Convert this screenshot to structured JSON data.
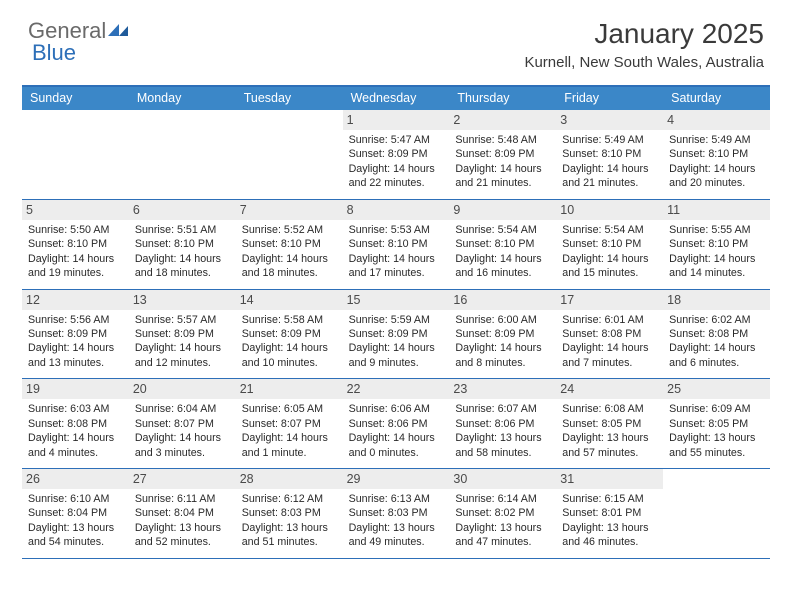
{
  "logo": {
    "text1": "General",
    "text2": "Blue",
    "color1": "#6a6a6a",
    "color2": "#2d6fb8"
  },
  "title": "January 2025",
  "location": "Kurnell, New South Wales, Australia",
  "colors": {
    "header_bar": "#3b87c8",
    "rule": "#2d6fb8",
    "daynum_bg": "#ededed",
    "text": "#333333",
    "background": "#ffffff"
  },
  "weekdays": [
    "Sunday",
    "Monday",
    "Tuesday",
    "Wednesday",
    "Thursday",
    "Friday",
    "Saturday"
  ],
  "weeks": [
    [
      {
        "blank": true
      },
      {
        "blank": true
      },
      {
        "blank": true
      },
      {
        "num": "1",
        "sunrise": "5:47 AM",
        "sunset": "8:09 PM",
        "daylight": "14 hours and 22 minutes."
      },
      {
        "num": "2",
        "sunrise": "5:48 AM",
        "sunset": "8:09 PM",
        "daylight": "14 hours and 21 minutes."
      },
      {
        "num": "3",
        "sunrise": "5:49 AM",
        "sunset": "8:10 PM",
        "daylight": "14 hours and 21 minutes."
      },
      {
        "num": "4",
        "sunrise": "5:49 AM",
        "sunset": "8:10 PM",
        "daylight": "14 hours and 20 minutes."
      }
    ],
    [
      {
        "num": "5",
        "sunrise": "5:50 AM",
        "sunset": "8:10 PM",
        "daylight": "14 hours and 19 minutes."
      },
      {
        "num": "6",
        "sunrise": "5:51 AM",
        "sunset": "8:10 PM",
        "daylight": "14 hours and 18 minutes."
      },
      {
        "num": "7",
        "sunrise": "5:52 AM",
        "sunset": "8:10 PM",
        "daylight": "14 hours and 18 minutes."
      },
      {
        "num": "8",
        "sunrise": "5:53 AM",
        "sunset": "8:10 PM",
        "daylight": "14 hours and 17 minutes."
      },
      {
        "num": "9",
        "sunrise": "5:54 AM",
        "sunset": "8:10 PM",
        "daylight": "14 hours and 16 minutes."
      },
      {
        "num": "10",
        "sunrise": "5:54 AM",
        "sunset": "8:10 PM",
        "daylight": "14 hours and 15 minutes."
      },
      {
        "num": "11",
        "sunrise": "5:55 AM",
        "sunset": "8:10 PM",
        "daylight": "14 hours and 14 minutes."
      }
    ],
    [
      {
        "num": "12",
        "sunrise": "5:56 AM",
        "sunset": "8:09 PM",
        "daylight": "14 hours and 13 minutes."
      },
      {
        "num": "13",
        "sunrise": "5:57 AM",
        "sunset": "8:09 PM",
        "daylight": "14 hours and 12 minutes."
      },
      {
        "num": "14",
        "sunrise": "5:58 AM",
        "sunset": "8:09 PM",
        "daylight": "14 hours and 10 minutes."
      },
      {
        "num": "15",
        "sunrise": "5:59 AM",
        "sunset": "8:09 PM",
        "daylight": "14 hours and 9 minutes."
      },
      {
        "num": "16",
        "sunrise": "6:00 AM",
        "sunset": "8:09 PM",
        "daylight": "14 hours and 8 minutes."
      },
      {
        "num": "17",
        "sunrise": "6:01 AM",
        "sunset": "8:08 PM",
        "daylight": "14 hours and 7 minutes."
      },
      {
        "num": "18",
        "sunrise": "6:02 AM",
        "sunset": "8:08 PM",
        "daylight": "14 hours and 6 minutes."
      }
    ],
    [
      {
        "num": "19",
        "sunrise": "6:03 AM",
        "sunset": "8:08 PM",
        "daylight": "14 hours and 4 minutes."
      },
      {
        "num": "20",
        "sunrise": "6:04 AM",
        "sunset": "8:07 PM",
        "daylight": "14 hours and 3 minutes."
      },
      {
        "num": "21",
        "sunrise": "6:05 AM",
        "sunset": "8:07 PM",
        "daylight": "14 hours and 1 minute."
      },
      {
        "num": "22",
        "sunrise": "6:06 AM",
        "sunset": "8:06 PM",
        "daylight": "14 hours and 0 minutes."
      },
      {
        "num": "23",
        "sunrise": "6:07 AM",
        "sunset": "8:06 PM",
        "daylight": "13 hours and 58 minutes."
      },
      {
        "num": "24",
        "sunrise": "6:08 AM",
        "sunset": "8:05 PM",
        "daylight": "13 hours and 57 minutes."
      },
      {
        "num": "25",
        "sunrise": "6:09 AM",
        "sunset": "8:05 PM",
        "daylight": "13 hours and 55 minutes."
      }
    ],
    [
      {
        "num": "26",
        "sunrise": "6:10 AM",
        "sunset": "8:04 PM",
        "daylight": "13 hours and 54 minutes."
      },
      {
        "num": "27",
        "sunrise": "6:11 AM",
        "sunset": "8:04 PM",
        "daylight": "13 hours and 52 minutes."
      },
      {
        "num": "28",
        "sunrise": "6:12 AM",
        "sunset": "8:03 PM",
        "daylight": "13 hours and 51 minutes."
      },
      {
        "num": "29",
        "sunrise": "6:13 AM",
        "sunset": "8:03 PM",
        "daylight": "13 hours and 49 minutes."
      },
      {
        "num": "30",
        "sunrise": "6:14 AM",
        "sunset": "8:02 PM",
        "daylight": "13 hours and 47 minutes."
      },
      {
        "num": "31",
        "sunrise": "6:15 AM",
        "sunset": "8:01 PM",
        "daylight": "13 hours and 46 minutes."
      },
      {
        "blank": true
      }
    ]
  ],
  "labels": {
    "sunrise": "Sunrise:",
    "sunset": "Sunset:",
    "daylight": "Daylight:"
  },
  "typography": {
    "title_fontsize": 28,
    "location_fontsize": 15,
    "weekday_fontsize": 12.5,
    "body_fontsize": 10.7
  }
}
